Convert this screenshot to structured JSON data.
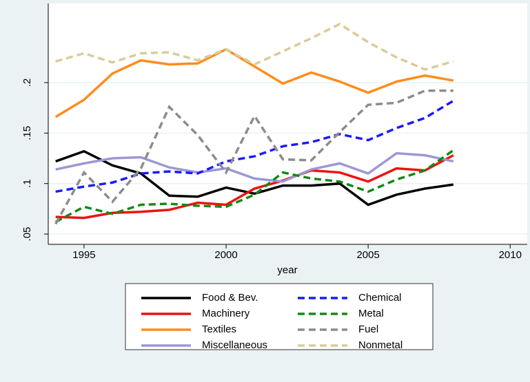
{
  "chart_data": {
    "type": "line",
    "x_label": "year",
    "x": [
      1994,
      1995,
      1996,
      1997,
      1998,
      1999,
      2000,
      2001,
      2002,
      2003,
      2004,
      2005,
      2006,
      2007,
      2008
    ],
    "xlim": [
      1993.74,
      2010.6
    ],
    "xticks": [
      1995,
      2000,
      2005,
      2010
    ],
    "ylim": [
      0.0398,
      0.2784
    ],
    "yticks": [
      {
        "value": 0.05,
        "label": ".05"
      },
      {
        "value": 0.1,
        "label": ".1"
      },
      {
        "value": 0.15,
        "label": ".15"
      },
      {
        "value": 0.2,
        "label": ".2"
      }
    ],
    "grid": true,
    "legend_position": "bottom",
    "series": [
      {
        "name": "Food & Bev.",
        "color": "#000000",
        "line_style": "solid",
        "values": [
          0.122,
          0.132,
          0.118,
          0.11,
          0.088,
          0.087,
          0.096,
          0.09,
          0.098,
          0.098,
          0.1,
          0.079,
          0.089,
          0.095,
          0.099
        ]
      },
      {
        "name": "Machinery",
        "color": "#ee1111",
        "line_style": "solid",
        "values": [
          0.067,
          0.066,
          0.071,
          0.072,
          0.074,
          0.081,
          0.079,
          0.095,
          0.103,
          0.113,
          0.111,
          0.102,
          0.115,
          0.113,
          0.128
        ]
      },
      {
        "name": "Textiles",
        "color": "#ff8c1a",
        "line_style": "solid",
        "values": [
          0.166,
          0.183,
          0.209,
          0.222,
          0.218,
          0.219,
          0.233,
          0.216,
          0.199,
          0.21,
          0.201,
          0.19,
          0.201,
          0.207,
          0.202
        ]
      },
      {
        "name": "Miscellaneous",
        "color": "#9b98d6",
        "line_style": "solid",
        "values": [
          0.114,
          0.12,
          0.125,
          0.126,
          0.116,
          0.111,
          0.115,
          0.105,
          0.102,
          0.114,
          0.12,
          0.11,
          0.13,
          0.128,
          0.122
        ]
      },
      {
        "name": "Chemical",
        "color": "#1a1aff",
        "line_style": "dashed",
        "values": [
          0.092,
          0.097,
          0.101,
          0.11,
          0.112,
          0.11,
          0.122,
          0.127,
          0.137,
          0.141,
          0.149,
          0.143,
          0.155,
          0.165,
          0.182
        ]
      },
      {
        "name": "Metal",
        "color": "#138a13",
        "line_style": "dashed",
        "values": [
          0.062,
          0.077,
          0.07,
          0.079,
          0.08,
          0.078,
          0.077,
          0.089,
          0.111,
          0.105,
          0.102,
          0.092,
          0.104,
          0.113,
          0.133
        ]
      },
      {
        "name": "Fuel",
        "color": "#8c8c8c",
        "line_style": "dashed",
        "values": [
          0.06,
          0.111,
          0.082,
          0.115,
          0.176,
          0.148,
          0.111,
          0.167,
          0.124,
          0.123,
          0.151,
          0.178,
          0.18,
          0.192,
          0.192
        ]
      },
      {
        "name": "Nonmetal",
        "color": "#d9cc99",
        "line_style": "dashed",
        "values": [
          0.221,
          0.229,
          0.22,
          0.229,
          0.23,
          0.222,
          0.233,
          0.218,
          0.231,
          0.244,
          0.258,
          0.24,
          0.225,
          0.213,
          0.221
        ]
      }
    ]
  }
}
